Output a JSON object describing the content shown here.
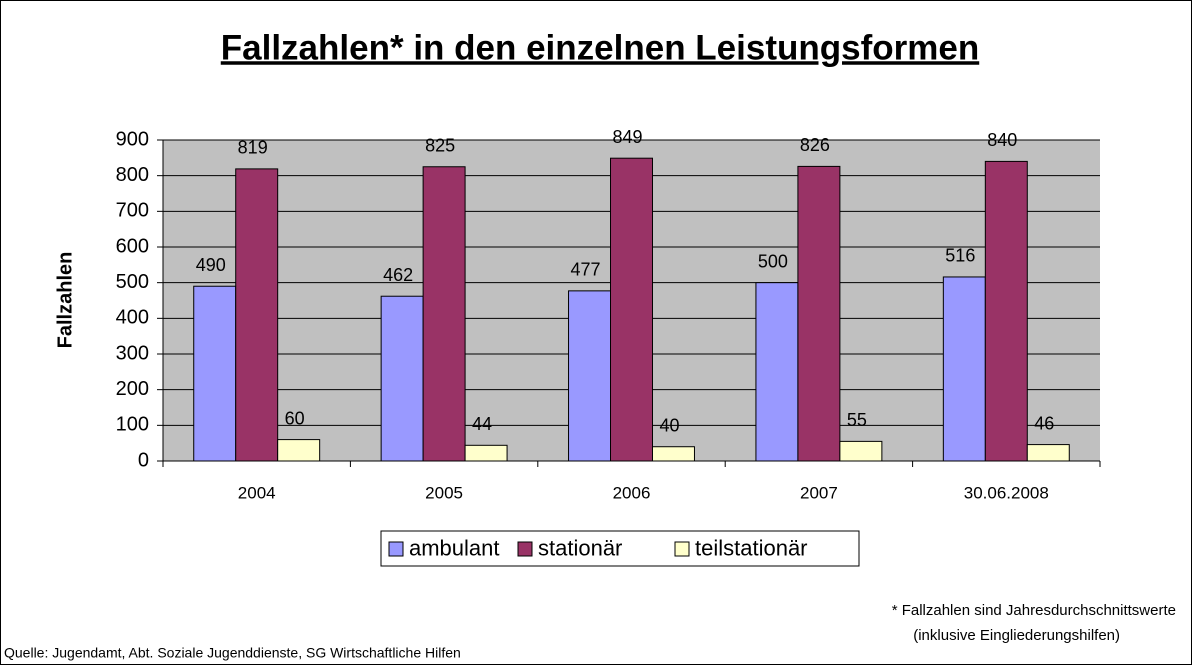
{
  "chart_data": {
    "type": "bar",
    "title": "Fallzahlen* in den einzelnen Leistungsformen",
    "y_label": "Fallzahlen",
    "categories": [
      "2004",
      "2005",
      "2006",
      "2007",
      "30.06.2008"
    ],
    "series": [
      {
        "name": "ambulant",
        "color": "#9999ff",
        "values": [
          490,
          462,
          477,
          500,
          516
        ]
      },
      {
        "name": "stationär",
        "color": "#993366",
        "values": [
          819,
          825,
          849,
          826,
          840
        ]
      },
      {
        "name": "teilstationär",
        "color": "#ffffcc",
        "values": [
          60,
          44,
          40,
          55,
          46
        ]
      }
    ],
    "ylim": [
      0,
      900
    ],
    "yticks": [
      0,
      100,
      200,
      300,
      400,
      500,
      600,
      700,
      800,
      900
    ],
    "grid": true,
    "legend": "bottom",
    "plot_background": "#c0c0c0",
    "footnote": [
      "* Fallzahlen sind Jahresdurchschnittswerte",
      "(inklusive Eingliederungshilfen)"
    ],
    "source": "Quelle: Jugendamt, Abt. Soziale Jugenddienste, SG Wirtschaftliche Hilfen"
  }
}
